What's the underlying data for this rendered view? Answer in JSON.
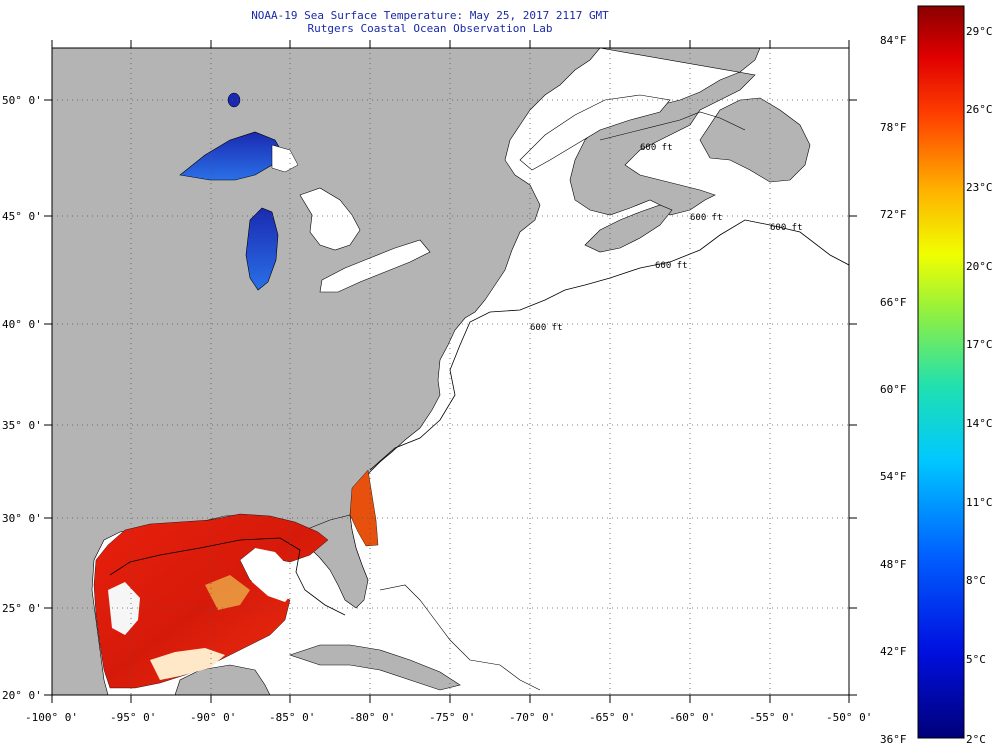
{
  "title_line1": "NOAA-19 Sea Surface Temperature:  May 25, 2017 2117 GMT",
  "title_line2": "Rutgers Coastal Ocean Observation Lab",
  "lat_labels": [
    "50° 0'",
    "45° 0'",
    "40° 0'",
    "35° 0'",
    "30° 0'",
    "25° 0'",
    "20° 0'"
  ],
  "lon_labels": [
    "-100° 0'",
    "-95° 0'",
    "-90° 0'",
    "-85° 0'",
    "-80° 0'",
    "-75° 0'",
    "-70° 0'",
    "-65° 0'",
    "-60° 0'",
    "-55° 0'",
    "-50° 0'"
  ],
  "depth_contour_labels": [
    "600 ft",
    "600 ft",
    "600 ft",
    "600 ft",
    "600 ft"
  ],
  "colorbar": {
    "fahrenheit_labels": [
      "84°F",
      "78°F",
      "72°F",
      "66°F",
      "60°F",
      "54°F",
      "48°F",
      "42°F",
      "36°F"
    ],
    "celsius_labels": [
      "29°C",
      "26°C",
      "23°C",
      "20°C",
      "17°C",
      "14°C",
      "11°C",
      "8°C",
      "5°C",
      "2°C"
    ]
  },
  "colors": {
    "land": "#b4b4b4",
    "no_data": "#ffffff",
    "grid": "#555555",
    "title": "#1a2aa8",
    "warm_sst": "#e0180a",
    "lake_sst": "#1630b0"
  }
}
